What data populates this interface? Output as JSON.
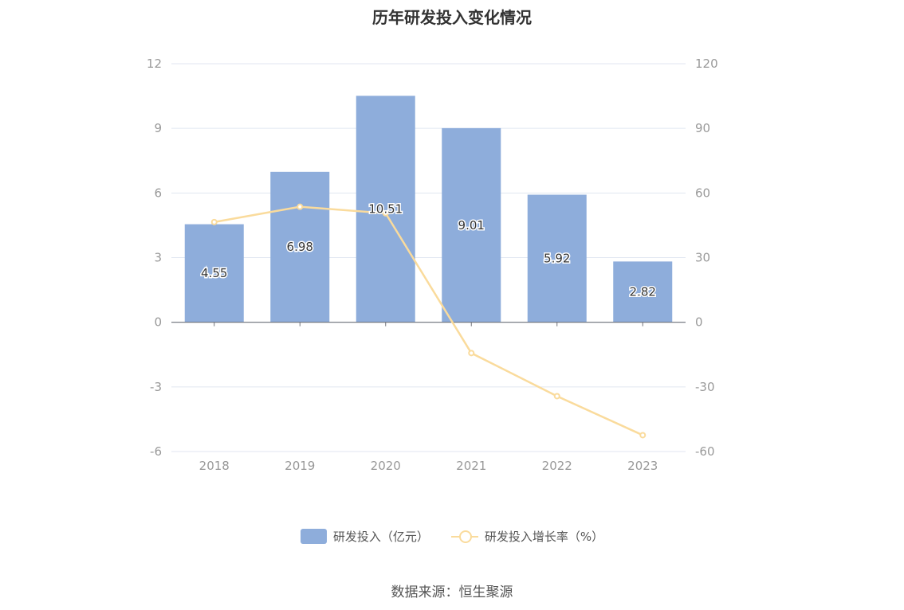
{
  "chart_data": {
    "type": "bar",
    "title": "历年研发投入变化情况",
    "categories": [
      "2018",
      "2019",
      "2020",
      "2021",
      "2022",
      "2023"
    ],
    "series": [
      {
        "name": "研发投入（亿元）",
        "type": "bar",
        "axis": "left",
        "values": [
          4.55,
          6.98,
          10.51,
          9.01,
          5.92,
          2.82
        ]
      },
      {
        "name": "研发投入增长率（%）",
        "type": "line",
        "axis": "right",
        "values": [
          46.5,
          53.6,
          50.6,
          -14.3,
          -34.3,
          -52.4
        ]
      }
    ],
    "y_left": {
      "min": -6,
      "max": 12,
      "ticks": [
        "-6",
        "-3",
        "0",
        "3",
        "6",
        "9",
        "12"
      ]
    },
    "y_right": {
      "min": -60,
      "max": 120,
      "ticks": [
        "-60",
        "-30",
        "0",
        "30",
        "60",
        "90",
        "120"
      ]
    },
    "grid": true,
    "legend_position": "bottom",
    "colors": {
      "bar": "#8EADDB",
      "line": "#FADB9C"
    }
  },
  "source": "数据来源：恒生聚源"
}
